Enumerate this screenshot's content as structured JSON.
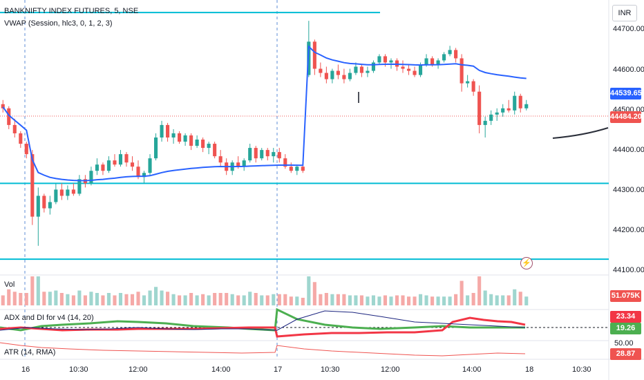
{
  "legend": {
    "symbol_line": "BANKNIFTY INDEX FUTURES, 5, NSE",
    "vwap_line": "VWAP (Session, hlc3, 0, 1, 2, 3)",
    "vol_label": "Vol",
    "adx_label": "ADX and DI for v4 (14, 20)",
    "atr_label": "ATR (14, RMA)"
  },
  "currency": "INR",
  "price_axis": {
    "ticks": [
      "44700.00",
      "44600.00",
      "44500.00",
      "44400.00",
      "44300.00",
      "44200.00",
      "44100.00"
    ],
    "vwap_badge": "44539.65",
    "last_price_badge": "44484.20"
  },
  "volume_axis": {
    "badge": "51.075K"
  },
  "adx_axis": {
    "badge_red": "23.34",
    "badge_green": "19.26",
    "tick": "50.00"
  },
  "atr_axis": {
    "badge": "28.87"
  },
  "time_axis": [
    "16",
    "10:30",
    "12:00",
    "14:00",
    "17",
    "10:30",
    "12:00",
    "14:00",
    "18",
    "10:30"
  ],
  "colors": {
    "up": "#26a69a",
    "down": "#ef5350",
    "vwap": "#2962ff",
    "level": "#00bcd4",
    "adx_green": "#4caf50",
    "adx_red": "#f23645",
    "adx_navy": "#1a237e",
    "atr": "#ef5350"
  },
  "chart_data": {
    "type": "candlestick",
    "title": "BANKNIFTY INDEX FUTURES, 5, NSE",
    "y_range": [
      44080,
      44740
    ],
    "horizontal_levels": [
      44710,
      44300,
      44118
    ],
    "session_separators": [
      "16",
      "17"
    ],
    "candles": [
      [
        44490,
        44500,
        44470,
        44480
      ],
      [
        44480,
        44485,
        44430,
        44440
      ],
      [
        44440,
        44455,
        44410,
        44420
      ],
      [
        44420,
        44425,
        44385,
        44395
      ],
      [
        44395,
        44400,
        44360,
        44370
      ],
      [
        44370,
        44380,
        44200,
        44220
      ],
      [
        44220,
        44290,
        44150,
        44270
      ],
      [
        44270,
        44275,
        44230,
        44240
      ],
      [
        44240,
        44270,
        44225,
        44255
      ],
      [
        44255,
        44300,
        44250,
        44285
      ],
      [
        44285,
        44300,
        44260,
        44270
      ],
      [
        44270,
        44295,
        44260,
        44285
      ],
      [
        44285,
        44300,
        44270,
        44275
      ],
      [
        44275,
        44320,
        44270,
        44310
      ],
      [
        44310,
        44320,
        44290,
        44300
      ],
      [
        44300,
        44340,
        44295,
        44330
      ],
      [
        44330,
        44360,
        44320,
        44345
      ],
      [
        44345,
        44350,
        44320,
        44330
      ],
      [
        44330,
        44365,
        44325,
        44355
      ],
      [
        44355,
        44370,
        44340,
        44345
      ],
      [
        44345,
        44380,
        44340,
        44370
      ],
      [
        44370,
        44375,
        44340,
        44350
      ],
      [
        44350,
        44365,
        44330,
        44340
      ],
      [
        44340,
        44355,
        44310,
        44315
      ],
      [
        44315,
        44330,
        44300,
        44325
      ],
      [
        44325,
        44370,
        44320,
        44360
      ],
      [
        44360,
        44420,
        44355,
        44410
      ],
      [
        44410,
        44450,
        44400,
        44440
      ],
      [
        44440,
        44445,
        44400,
        44410
      ],
      [
        44410,
        44430,
        44395,
        44420
      ],
      [
        44420,
        44425,
        44395,
        44400
      ],
      [
        44400,
        44420,
        44390,
        44415
      ],
      [
        44415,
        44420,
        44380,
        44390
      ],
      [
        44390,
        44415,
        44385,
        44405
      ],
      [
        44405,
        44410,
        44375,
        44385
      ],
      [
        44385,
        44400,
        44370,
        44395
      ],
      [
        44395,
        44400,
        44360,
        44365
      ],
      [
        44365,
        44380,
        44340,
        44350
      ],
      [
        44350,
        44360,
        44320,
        44330
      ],
      [
        44330,
        44355,
        44320,
        44350
      ],
      [
        44350,
        44365,
        44335,
        44340
      ],
      [
        44340,
        44360,
        44330,
        44355
      ],
      [
        44355,
        44395,
        44350,
        44385
      ],
      [
        44385,
        44390,
        44350,
        44360
      ],
      [
        44360,
        44385,
        44355,
        44380
      ],
      [
        44380,
        44385,
        44355,
        44365
      ],
      [
        44365,
        44385,
        44350,
        44375
      ],
      [
        44375,
        44385,
        44350,
        44360
      ],
      [
        44360,
        44370,
        44335,
        44340
      ],
      [
        44340,
        44350,
        44325,
        44330
      ],
      [
        44330,
        44345,
        44320,
        44340
      ],
      [
        44340,
        44345,
        44325,
        44330
      ],
      [
        44560,
        44690,
        44555,
        44640
      ],
      [
        44640,
        44645,
        44560,
        44575
      ],
      [
        44575,
        44590,
        44555,
        44565
      ],
      [
        44565,
        44580,
        44540,
        44550
      ],
      [
        44550,
        44575,
        44540,
        44570
      ],
      [
        44570,
        44585,
        44550,
        44560
      ],
      [
        44560,
        44575,
        44540,
        44550
      ],
      [
        44550,
        44575,
        44545,
        44565
      ],
      [
        44565,
        44590,
        44560,
        44580
      ],
      [
        44580,
        44585,
        44555,
        44565
      ],
      [
        44565,
        44580,
        44555,
        44570
      ],
      [
        44570,
        44595,
        44565,
        44590
      ],
      [
        44590,
        44610,
        44585,
        44605
      ],
      [
        44605,
        44610,
        44580,
        44590
      ],
      [
        44590,
        44600,
        44575,
        44595
      ],
      [
        44595,
        44600,
        44570,
        44580
      ],
      [
        44580,
        44595,
        44565,
        44575
      ],
      [
        44575,
        44585,
        44560,
        44570
      ],
      [
        44570,
        44580,
        44555,
        44560
      ],
      [
        44560,
        44590,
        44555,
        44585
      ],
      [
        44585,
        44610,
        44580,
        44600
      ],
      [
        44600,
        44605,
        44580,
        44585
      ],
      [
        44585,
        44600,
        44575,
        44595
      ],
      [
        44595,
        44615,
        44590,
        44610
      ],
      [
        44610,
        44630,
        44605,
        44620
      ],
      [
        44620,
        44625,
        44590,
        44600
      ],
      [
        44600,
        44610,
        44520,
        44540
      ],
      [
        44540,
        44560,
        44530,
        44545
      ],
      [
        44545,
        44550,
        44510,
        44520
      ],
      [
        44520,
        44535,
        44420,
        44440
      ],
      [
        44440,
        44460,
        44410,
        44450
      ],
      [
        44450,
        44475,
        44440,
        44465
      ],
      [
        44465,
        44480,
        44450,
        44470
      ],
      [
        44470,
        44490,
        44460,
        44480
      ],
      [
        44480,
        44500,
        44470,
        44475
      ],
      [
        44475,
        44520,
        44465,
        44510
      ],
      [
        44510,
        44515,
        44470,
        44480
      ],
      [
        44480,
        44500,
        44475,
        44490
      ]
    ]
  }
}
